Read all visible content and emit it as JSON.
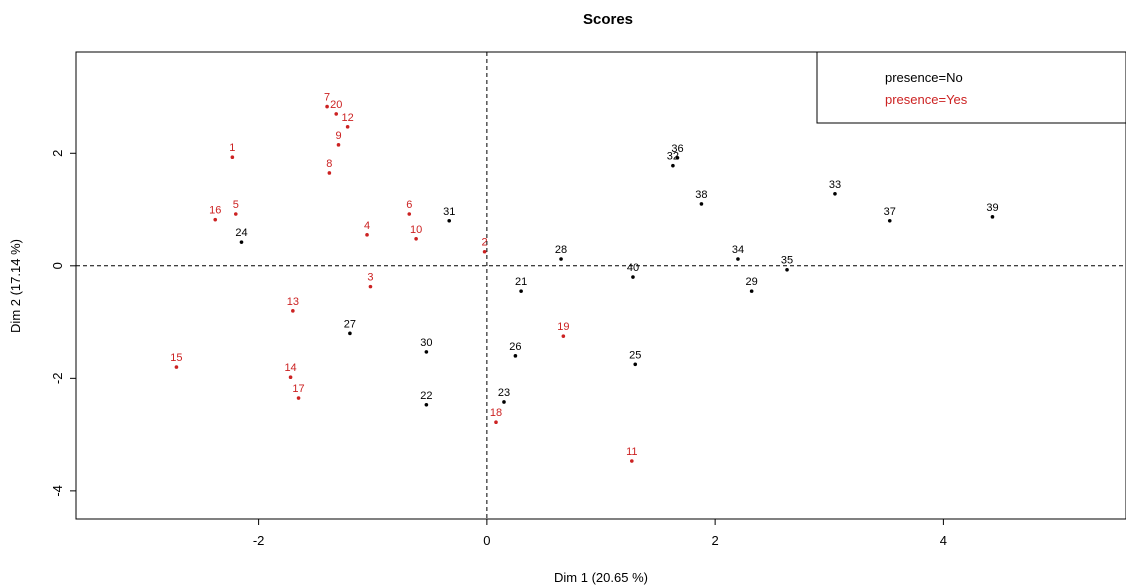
{
  "chart_data": {
    "type": "scatter",
    "title": "Scores",
    "xlabel": "Dim 1 (20.65 %)",
    "ylabel": "Dim 2 (17.14 %)",
    "xlim": [
      -3.6,
      5.6
    ],
    "ylim": [
      -4.5,
      3.8
    ],
    "x_ticks": [
      -2,
      0,
      2,
      4
    ],
    "y_ticks": [
      -4,
      -2,
      0,
      2
    ],
    "reference_lines": {
      "x": 0,
      "y": 0,
      "style": "dashed"
    },
    "grid": false,
    "legend": {
      "position": "top-right",
      "entries": [
        {
          "label": "presence=No",
          "color": "#000000"
        },
        {
          "label": "presence=Yes",
          "color": "#cc2222"
        }
      ]
    },
    "series": [
      {
        "name": "presence=No",
        "color": "#000000",
        "points": [
          {
            "label": "21",
            "x": 0.3,
            "y": -0.45
          },
          {
            "label": "22",
            "x": -0.53,
            "y": -2.47
          },
          {
            "label": "23",
            "x": 0.15,
            "y": -2.42
          },
          {
            "label": "24",
            "x": -2.15,
            "y": 0.42
          },
          {
            "label": "25",
            "x": 1.3,
            "y": -1.75
          },
          {
            "label": "26",
            "x": 0.25,
            "y": -1.6
          },
          {
            "label": "27",
            "x": -1.2,
            "y": -1.2
          },
          {
            "label": "28",
            "x": 0.65,
            "y": 0.12
          },
          {
            "label": "29",
            "x": 2.32,
            "y": -0.45
          },
          {
            "label": "30",
            "x": -0.53,
            "y": -1.53
          },
          {
            "label": "31",
            "x": -0.33,
            "y": 0.8
          },
          {
            "label": "32",
            "x": 1.63,
            "y": 1.78
          },
          {
            "label": "33",
            "x": 3.05,
            "y": 1.28
          },
          {
            "label": "34",
            "x": 2.2,
            "y": 0.12
          },
          {
            "label": "35",
            "x": 2.63,
            "y": -0.07
          },
          {
            "label": "36",
            "x": 1.67,
            "y": 1.92
          },
          {
            "label": "37",
            "x": 3.53,
            "y": 0.8
          },
          {
            "label": "38",
            "x": 1.88,
            "y": 1.1
          },
          {
            "label": "39",
            "x": 4.43,
            "y": 0.87
          },
          {
            "label": "40",
            "x": 1.28,
            "y": -0.2
          }
        ]
      },
      {
        "name": "presence=Yes",
        "color": "#cc2222",
        "points": [
          {
            "label": "1",
            "x": -2.23,
            "y": 1.93
          },
          {
            "label": "2",
            "x": -0.02,
            "y": 0.25
          },
          {
            "label": "3",
            "x": -1.02,
            "y": -0.37
          },
          {
            "label": "4",
            "x": -1.05,
            "y": 0.55
          },
          {
            "label": "5",
            "x": -2.2,
            "y": 0.92
          },
          {
            "label": "6",
            "x": -0.68,
            "y": 0.92
          },
          {
            "label": "7",
            "x": -1.4,
            "y": 2.83
          },
          {
            "label": "8",
            "x": -1.38,
            "y": 1.65
          },
          {
            "label": "9",
            "x": -1.3,
            "y": 2.15
          },
          {
            "label": "10",
            "x": -0.62,
            "y": 0.48
          },
          {
            "label": "11",
            "x": 1.27,
            "y": -3.47
          },
          {
            "label": "12",
            "x": -1.22,
            "y": 2.47
          },
          {
            "label": "13",
            "x": -1.7,
            "y": -0.8
          },
          {
            "label": "14",
            "x": -1.72,
            "y": -1.98
          },
          {
            "label": "15",
            "x": -2.72,
            "y": -1.8
          },
          {
            "label": "16",
            "x": -2.38,
            "y": 0.82
          },
          {
            "label": "17",
            "x": -1.65,
            "y": -2.35
          },
          {
            "label": "18",
            "x": 0.08,
            "y": -2.78
          },
          {
            "label": "19",
            "x": 0.67,
            "y": -1.25
          },
          {
            "label": "20",
            "x": -1.32,
            "y": 2.7
          }
        ]
      }
    ]
  }
}
